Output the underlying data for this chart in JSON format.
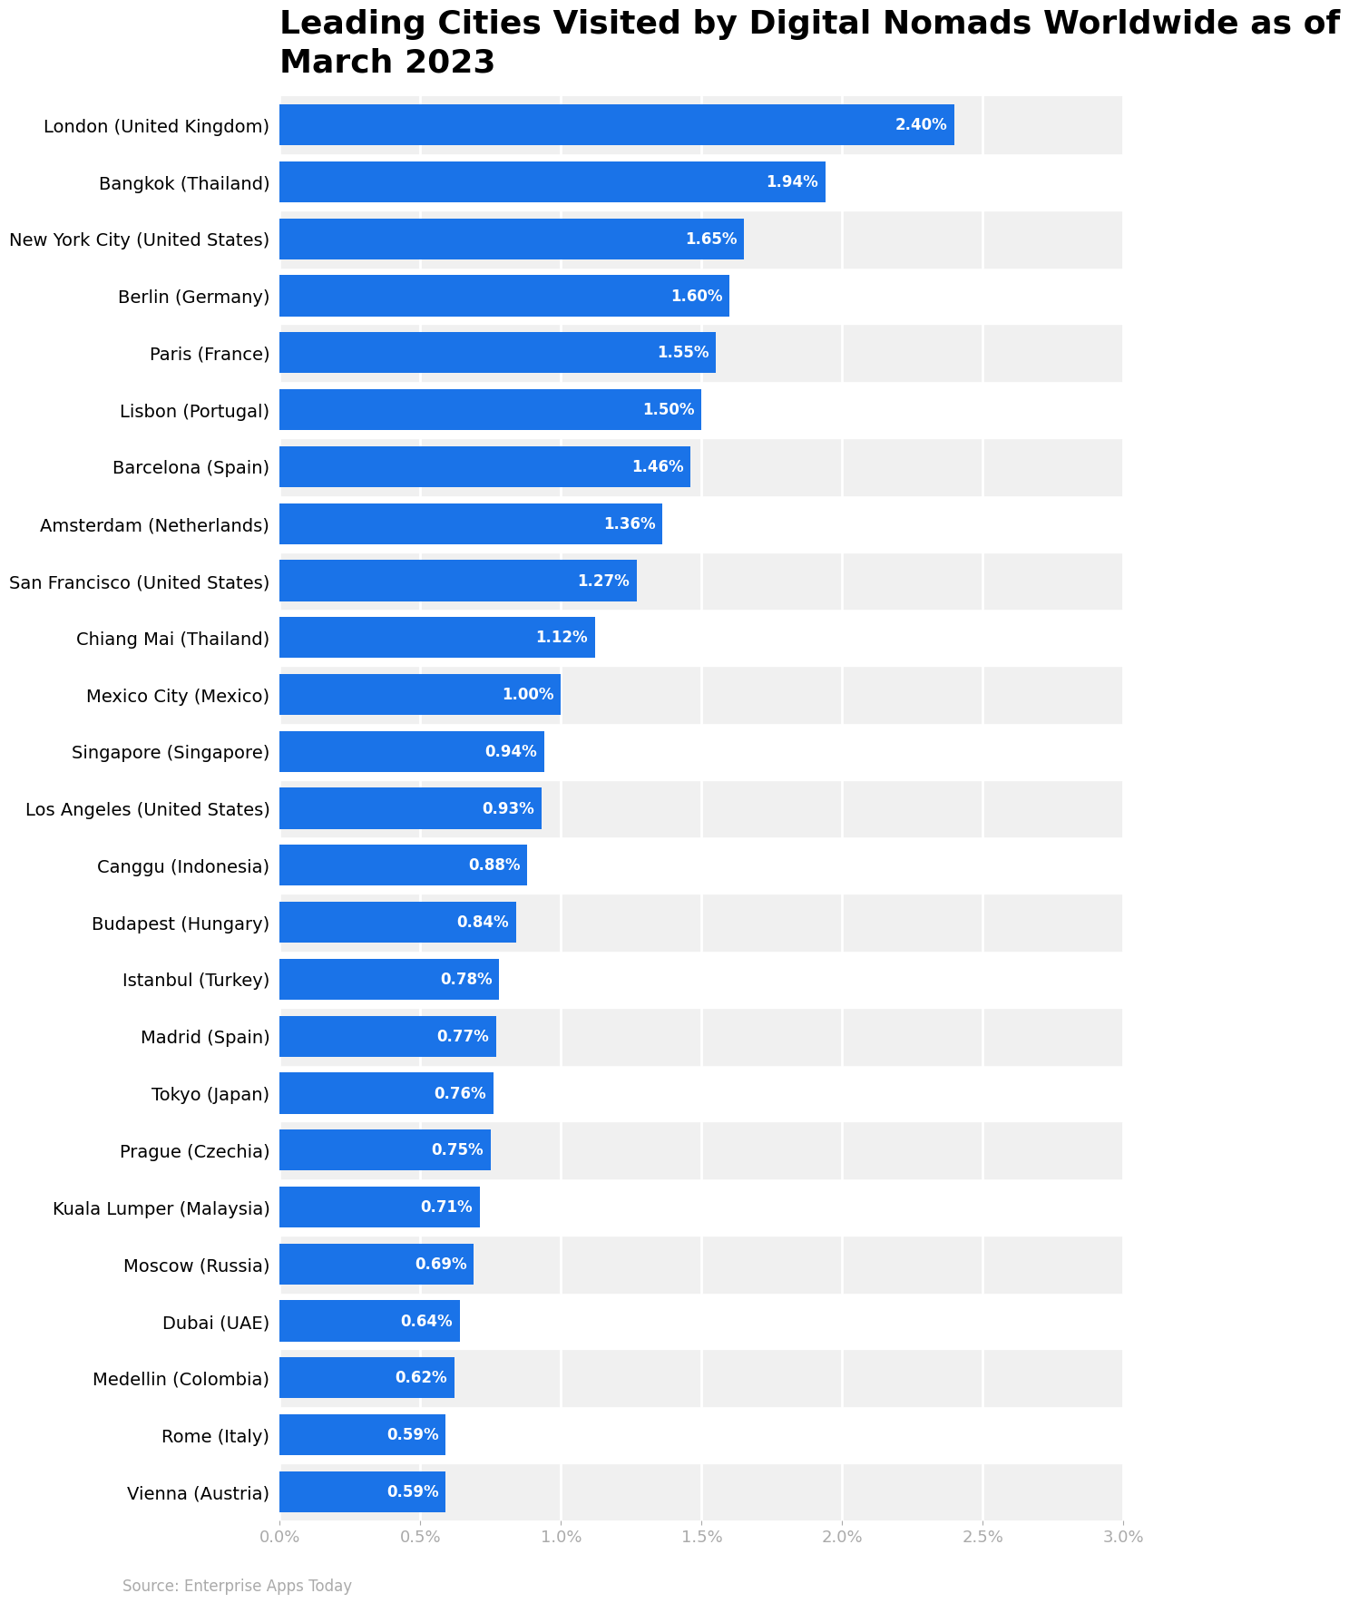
{
  "title": "Leading Cities Visited by Digital Nomads Worldwide as of\nMarch 2023",
  "source": "Source: Enterprise Apps Today",
  "categories": [
    "London (United Kingdom)",
    "Bangkok (Thailand)",
    "New York City (United States)",
    "Berlin (Germany)",
    "Paris (France)",
    "Lisbon (Portugal)",
    "Barcelona (Spain)",
    "Amsterdam (Netherlands)",
    "San Francisco (United States)",
    "Chiang Mai (Thailand)",
    "Mexico City (Mexico)",
    "Singapore (Singapore)",
    "Los Angeles (United States)",
    "Canggu (Indonesia)",
    "Budapest (Hungary)",
    "Istanbul (Turkey)",
    "Madrid (Spain)",
    "Tokyo (Japan)",
    "Prague (Czechia)",
    "Kuala Lumper (Malaysia)",
    "Moscow (Russia)",
    "Dubai (UAE)",
    "Medellin (Colombia)",
    "Rome (Italy)",
    "Vienna (Austria)"
  ],
  "values": [
    2.4,
    1.94,
    1.65,
    1.6,
    1.55,
    1.5,
    1.46,
    1.36,
    1.27,
    1.12,
    1.0,
    0.94,
    0.93,
    0.88,
    0.84,
    0.78,
    0.77,
    0.76,
    0.75,
    0.71,
    0.69,
    0.64,
    0.62,
    0.59,
    0.59
  ],
  "bar_color": "#1a73e8",
  "bg_color": "#ffffff",
  "plot_bg_color": "#ffffff",
  "row_odd_color": "#f0f0f0",
  "row_even_color": "#ffffff",
  "title_fontsize": 26,
  "label_fontsize": 14,
  "tick_fontsize": 13,
  "value_fontsize": 12,
  "source_fontsize": 12,
  "xlim": [
    0,
    3.0
  ],
  "xticks": [
    0.0,
    0.5,
    1.0,
    1.5,
    2.0,
    2.5,
    3.0
  ]
}
